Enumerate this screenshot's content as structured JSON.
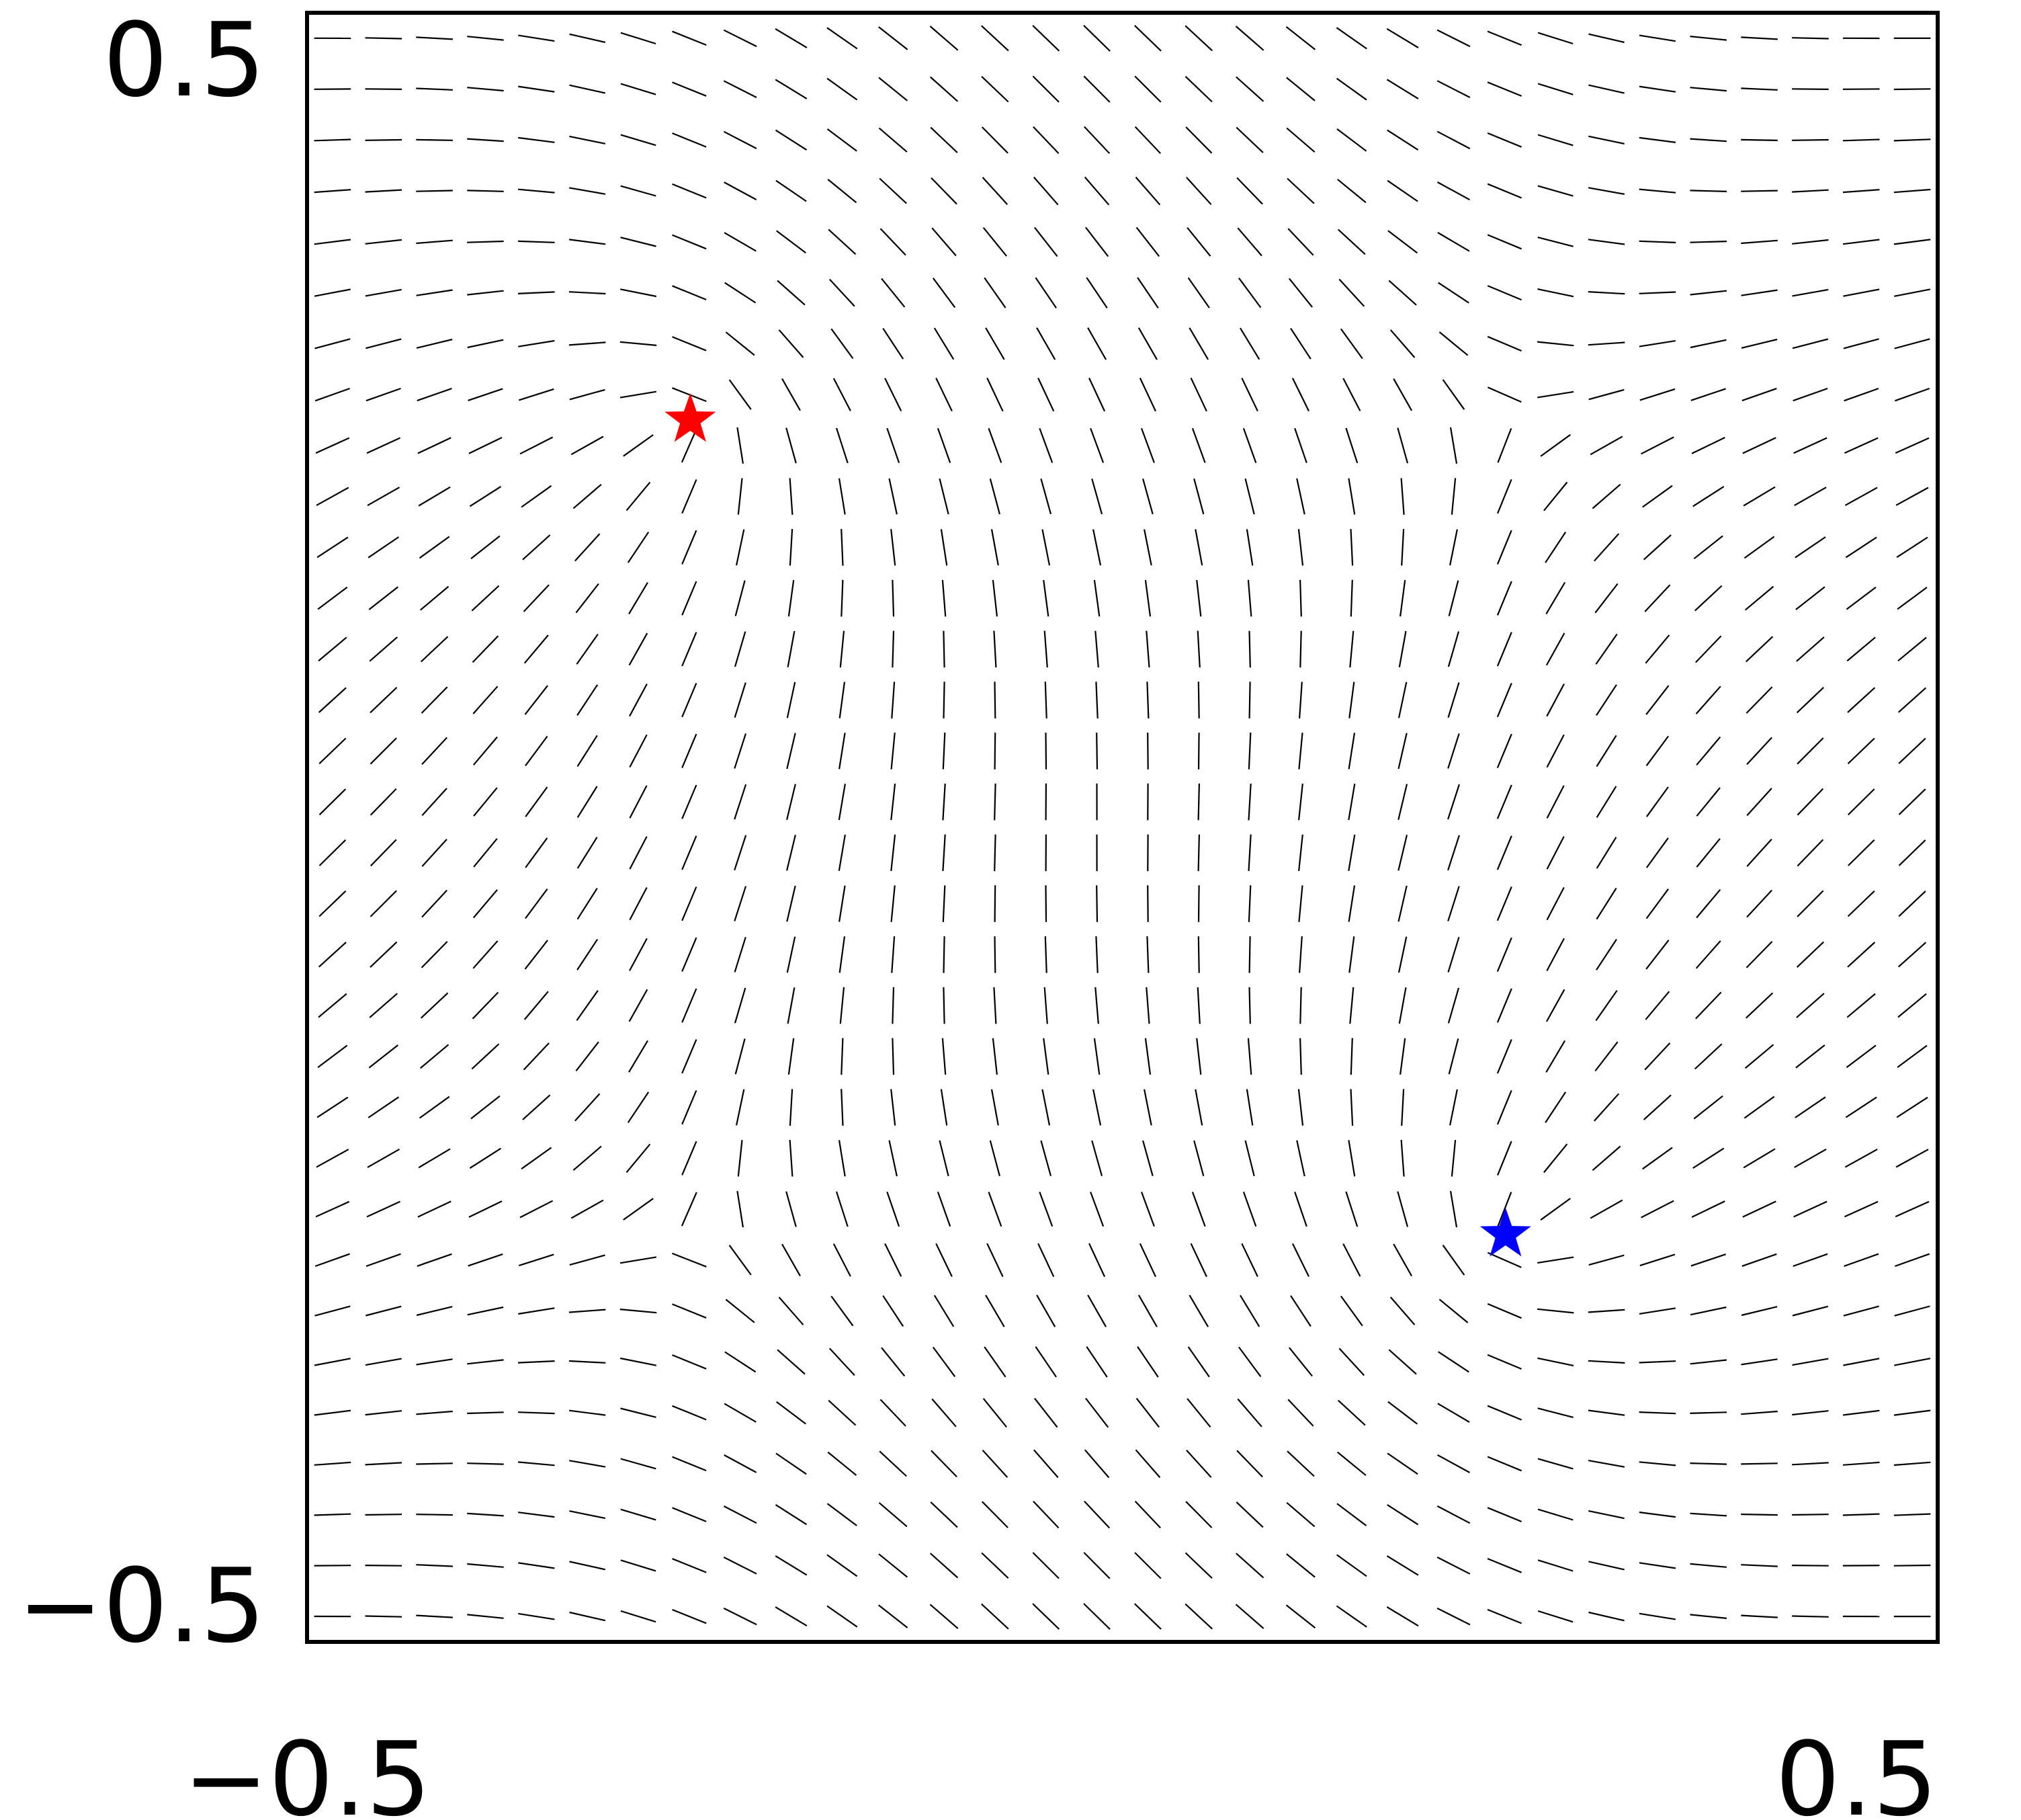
{
  "chart_data": {
    "type": "line-field",
    "title": "",
    "xlabel": "",
    "ylabel": "",
    "xlim": [
      -0.5,
      0.5
    ],
    "ylim": [
      -0.5,
      0.5
    ],
    "x_tick_labels": [
      "−0.5",
      "0.5"
    ],
    "y_tick_labels": [
      "0.5",
      "−0.5"
    ],
    "grid": false,
    "field": {
      "description_values": "director field, period-2 vortex lattice",
      "grid_n": 32,
      "line_color": "#000000"
    },
    "defects": [
      {
        "marker": "star",
        "color": "#ff0000",
        "x": -0.265,
        "y": 0.25
      },
      {
        "marker": "star",
        "color": "#0000ff",
        "x": 0.235,
        "y": -0.25
      }
    ]
  }
}
